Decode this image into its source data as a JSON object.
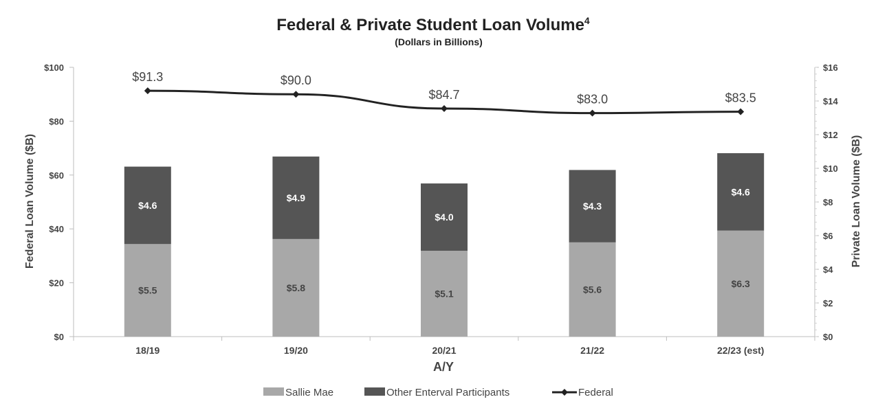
{
  "chart_data": {
    "type": "bar",
    "title": "Federal & Private Student Loan Volume",
    "title_superscript": "4",
    "subtitle": "(Dollars in Billions)",
    "xlabel": "A/Y",
    "ylabel_left": "Federal Loan Volume ($B)",
    "ylabel_right": "Private Loan Volume ($B)",
    "ylim_left": [
      0,
      100
    ],
    "ylim_right": [
      0,
      16
    ],
    "left_ticks": [
      "$0",
      "$20",
      "$40",
      "$60",
      "$80",
      "$100"
    ],
    "left_tick_values": [
      0,
      20,
      40,
      60,
      80,
      100
    ],
    "right_ticks": [
      "$0",
      "$2",
      "$4",
      "$6",
      "$8",
      "$10",
      "$12",
      "$14",
      "$16"
    ],
    "right_tick_values": [
      0,
      2,
      4,
      6,
      8,
      10,
      12,
      14,
      16
    ],
    "categories": [
      "18/19",
      "19/20",
      "20/21",
      "21/22",
      "22/23 (est)"
    ],
    "series": [
      {
        "name": "Sallie Mae",
        "kind": "bar",
        "axis": "right",
        "color": "#a8a8a8",
        "values": [
          5.5,
          5.8,
          5.1,
          5.6,
          6.3
        ],
        "labels": [
          "$5.5",
          "$5.8",
          "$5.1",
          "$5.6",
          "$6.3"
        ]
      },
      {
        "name": "Other Enterval Participants",
        "kind": "bar",
        "axis": "right",
        "color": "#555555",
        "values": [
          4.6,
          4.9,
          4.0,
          4.3,
          4.6
        ],
        "labels": [
          "$4.6",
          "$4.9",
          "$4.0",
          "$4.3",
          "$4.6"
        ]
      },
      {
        "name": "Federal",
        "kind": "line",
        "axis": "left",
        "color": "#222222",
        "values": [
          91.3,
          90.0,
          84.7,
          83.0,
          83.5
        ],
        "labels": [
          "$91.3",
          "$90.0",
          "$84.7",
          "$83.0",
          "$83.5"
        ]
      }
    ],
    "legend_position": "bottom-center",
    "grid": false
  }
}
